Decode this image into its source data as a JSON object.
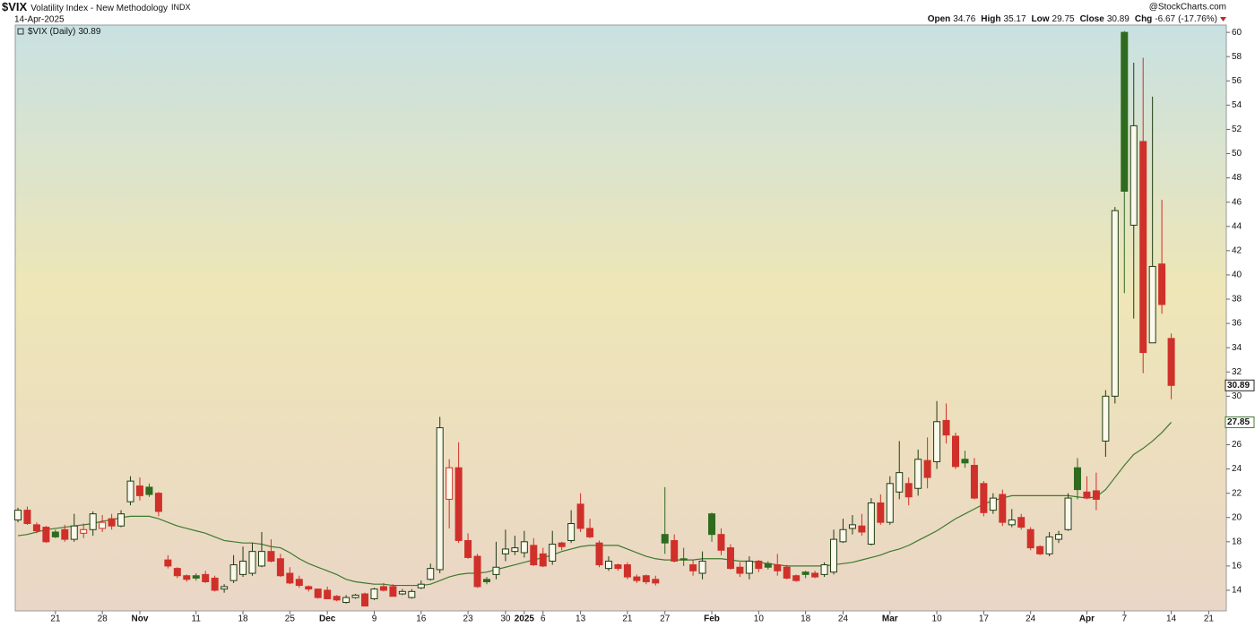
{
  "chart_data": {
    "type": "candlestick",
    "symbol": "$VIX",
    "title": "Volatility Index - New Methodology",
    "exchange": "INDX",
    "date": "14-Apr-2025",
    "watermark": "@StockCharts.com",
    "series_label": "$VIX (Daily)",
    "header": {
      "open_label": "Open",
      "high_label": "High",
      "low_label": "Low",
      "close_label": "Close",
      "change_label": "Chg",
      "change": "-6.67",
      "change_pct": "(-17.76%)"
    },
    "categories": [
      null,
      null,
      null,
      null,
      "21",
      null,
      null,
      null,
      null,
      "28",
      null,
      null,
      null,
      "Nov",
      null,
      null,
      null,
      null,
      null,
      "11",
      null,
      null,
      null,
      null,
      "18",
      null,
      null,
      null,
      null,
      "25",
      null,
      null,
      null,
      "Dec",
      null,
      null,
      null,
      null,
      "9",
      null,
      null,
      null,
      null,
      "16",
      null,
      null,
      null,
      null,
      "23",
      null,
      null,
      null,
      "30",
      null,
      "2025",
      null,
      "6",
      null,
      null,
      null,
      "13",
      null,
      null,
      null,
      null,
      "21",
      null,
      null,
      null,
      "27",
      null,
      null,
      null,
      null,
      "Feb",
      null,
      null,
      null,
      null,
      "10",
      null,
      null,
      null,
      null,
      "18",
      null,
      null,
      null,
      "24",
      null,
      null,
      null,
      null,
      "Mar",
      null,
      null,
      null,
      null,
      "10",
      null,
      null,
      null,
      null,
      "17",
      null,
      null,
      null,
      null,
      "24",
      null,
      null,
      null,
      null,
      null,
      "Apr",
      null,
      null,
      null,
      "7",
      null,
      null,
      null,
      null,
      "14",
      null,
      null,
      null,
      "21"
    ],
    "open": [
      19.8,
      20.6,
      19.4,
      19.2,
      18.8,
      19.0,
      18.2,
      18.7,
      19.0,
      19.1,
      19.9,
      19.3,
      21.3,
      22.6,
      22.5,
      22.0,
      16.5,
      15.8,
      15.2,
      15.2,
      15.3,
      15.0,
      14.1,
      14.8,
      15.3,
      15.4,
      16.0,
      17.2,
      16.6,
      15.4,
      14.9,
      14.3,
      14.1,
      14.0,
      13.5,
      13.0,
      13.4,
      13.7,
      13.3,
      14.3,
      14.3,
      13.7,
      13.4,
      14.2,
      14.9,
      15.7,
      21.5,
      24.1,
      18.1,
      16.8,
      14.9,
      15.3,
      17.0,
      17.2,
      17.1,
      17.7,
      17.0,
      16.4,
      17.9,
      18.1,
      21.1,
      19.1,
      17.9,
      15.8,
      16.1,
      16.1,
      15.1,
      15.2,
      14.9,
      18.6,
      18.1,
      16.6,
      16.1,
      15.4,
      20.3,
      18.6,
      17.5,
      15.9,
      15.4,
      16.4,
      16.2,
      16.1,
      15.9,
      15.2,
      15.5,
      15.4,
      15.3,
      15.5,
      18.0,
      19.1,
      19.3,
      17.8,
      21.2,
      19.6,
      22.1,
      22.8,
      22.4,
      24.7,
      24.6,
      28.0,
      26.7,
      24.8,
      24.3,
      22.8,
      20.6,
      21.9,
      19.4,
      20.0,
      19.0,
      17.6,
      17.0,
      18.2,
      19.0,
      24.1,
      22.1,
      22.2,
      26.3,
      30.0,
      60.0,
      44.1,
      51.0,
      34.4,
      40.9,
      34.76,
      null,
      null,
      null,
      null
    ],
    "high": [
      20.8,
      20.9,
      19.6,
      19.3,
      19.0,
      19.4,
      20.3,
      19.5,
      20.5,
      20.2,
      20.3,
      20.6,
      23.4,
      23.3,
      22.8,
      22.1,
      16.9,
      15.9,
      15.3,
      15.4,
      15.6,
      15.2,
      14.5,
      16.9,
      17.6,
      17.9,
      18.8,
      18.2,
      17.0,
      15.9,
      15.2,
      14.4,
      14.1,
      14.3,
      13.6,
      13.6,
      13.7,
      13.8,
      14.2,
      14.6,
      14.5,
      14.1,
      14.1,
      14.8,
      16.2,
      28.3,
      24.8,
      26.2,
      18.7,
      17.0,
      15.1,
      18.0,
      19.0,
      18.5,
      18.9,
      18.3,
      17.5,
      18.9,
      18.0,
      20.6,
      22.0,
      19.9,
      18.1,
      16.8,
      16.2,
      16.3,
      15.3,
      15.3,
      15.2,
      22.5,
      18.6,
      17.5,
      16.5,
      17.2,
      20.4,
      19.1,
      17.8,
      16.3,
      16.8,
      16.5,
      16.4,
      17.0,
      16.1,
      15.3,
      15.6,
      15.6,
      16.3,
      19.0,
      19.9,
      20.2,
      20.3,
      21.6,
      21.9,
      23.4,
      26.3,
      23.3,
      25.6,
      26.6,
      29.6,
      29.4,
      27.0,
      25.5,
      24.9,
      23.0,
      22.0,
      22.3,
      20.7,
      20.3,
      19.2,
      17.7,
      18.8,
      18.9,
      22.0,
      24.9,
      23.4,
      23.7,
      30.5,
      45.6,
      60.1,
      57.5,
      57.9,
      54.7,
      46.2,
      35.17,
      null,
      null,
      null,
      null
    ],
    "low": [
      19.6,
      19.4,
      18.7,
      17.9,
      18.3,
      18.0,
      18.0,
      18.3,
      18.5,
      18.8,
      19.0,
      19.2,
      21.0,
      21.4,
      21.7,
      20.1,
      15.8,
      15.0,
      14.7,
      14.8,
      14.6,
      13.9,
      13.8,
      14.6,
      15.1,
      15.2,
      15.9,
      16.3,
      15.1,
      14.5,
      14.2,
      13.9,
      13.3,
      13.3,
      13.1,
      12.9,
      13.3,
      12.7,
      13.2,
      13.9,
      13.5,
      13.6,
      13.3,
      14.1,
      14.8,
      15.4,
      19.1,
      17.9,
      16.6,
      14.2,
      14.5,
      14.9,
      16.4,
      16.9,
      16.7,
      16.0,
      15.9,
      16.1,
      17.3,
      17.9,
      18.8,
      18.3,
      15.9,
      15.6,
      15.6,
      14.9,
      14.6,
      14.5,
      14.4,
      17.0,
      16.3,
      16.0,
      15.2,
      14.9,
      18.0,
      16.9,
      15.7,
      15.1,
      14.9,
      15.5,
      15.7,
      15.2,
      14.9,
      14.7,
      15.0,
      15.0,
      15.1,
      15.3,
      17.9,
      18.6,
      18.5,
      17.7,
      19.4,
      19.4,
      21.5,
      21.0,
      21.8,
      22.4,
      24.0,
      26.1,
      24.0,
      24.1,
      21.5,
      20.1,
      20.3,
      19.3,
      19.2,
      19.0,
      17.3,
      16.9,
      16.8,
      17.9,
      18.9,
      21.5,
      21.5,
      20.6,
      25.0,
      29.4,
      38.5,
      36.4,
      31.9,
      34.4,
      36.8,
      29.75,
      null,
      null,
      null,
      null
    ],
    "close": [
      20.6,
      19.5,
      18.9,
      18.0,
      18.4,
      18.2,
      19.3,
      19.0,
      20.3,
      19.6,
      19.3,
      20.3,
      23.0,
      21.8,
      21.9,
      20.5,
      16.0,
      15.2,
      14.9,
      15.0,
      14.7,
      14.0,
      14.3,
      16.1,
      16.4,
      17.2,
      17.2,
      16.4,
      15.2,
      14.6,
      14.4,
      14.1,
      13.4,
      13.3,
      13.2,
      13.4,
      13.6,
      12.7,
      14.1,
      14.0,
      13.5,
      13.9,
      13.9,
      14.5,
      15.8,
      27.4,
      24.1,
      18.1,
      16.7,
      14.3,
      14.7,
      15.9,
      17.4,
      17.5,
      18.0,
      16.1,
      16.0,
      17.8,
      17.6,
      19.5,
      19.1,
      18.4,
      16.1,
      16.4,
      15.8,
      15.1,
      14.8,
      14.7,
      14.6,
      17.9,
      16.4,
      16.5,
      15.6,
      16.4,
      18.6,
      17.3,
      15.8,
      15.4,
      16.4,
      15.8,
      15.9,
      15.6,
      15.0,
      14.8,
      15.3,
      15.1,
      16.1,
      18.2,
      19.0,
      19.4,
      18.8,
      21.2,
      19.6,
      22.8,
      23.7,
      21.7,
      24.8,
      23.3,
      27.9,
      26.8,
      24.2,
      24.5,
      21.6,
      20.4,
      21.6,
      19.6,
      19.8,
      19.2,
      17.5,
      17.0,
      18.4,
      18.6,
      21.6,
      22.3,
      21.6,
      21.5,
      30.0,
      45.3,
      46.9,
      52.3,
      33.6,
      40.7,
      37.56,
      30.89,
      null,
      null,
      null,
      null
    ],
    "ma": {
      "color": "#3d7a2e",
      "values": [
        18.5,
        18.6,
        18.8,
        19.0,
        19.1,
        19.2,
        19.3,
        19.4,
        19.5,
        19.7,
        19.8,
        20.0,
        20.1,
        20.1,
        20.1,
        19.9,
        19.6,
        19.3,
        19.1,
        18.9,
        18.7,
        18.4,
        18.1,
        18.0,
        17.9,
        17.9,
        17.8,
        17.6,
        17.5,
        17.1,
        16.6,
        16.2,
        15.9,
        15.6,
        15.3,
        14.9,
        14.7,
        14.6,
        14.5,
        14.5,
        14.4,
        14.4,
        14.4,
        14.4,
        14.5,
        14.8,
        15.1,
        15.3,
        15.4,
        15.4,
        15.5,
        15.7,
        15.9,
        16.1,
        16.3,
        16.5,
        16.7,
        16.9,
        17.2,
        17.4,
        17.6,
        17.7,
        17.7,
        17.7,
        17.7,
        17.4,
        17.1,
        16.8,
        16.6,
        16.5,
        16.5,
        16.5,
        16.5,
        16.6,
        16.6,
        16.6,
        16.5,
        16.4,
        16.4,
        16.3,
        16.2,
        16.1,
        16.0,
        16.0,
        16.0,
        16.0,
        16.0,
        16.1,
        16.2,
        16.3,
        16.5,
        16.7,
        16.9,
        17.2,
        17.4,
        17.7,
        18.1,
        18.5,
        18.9,
        19.4,
        19.9,
        20.3,
        20.7,
        21.1,
        21.4,
        21.6,
        21.8,
        21.8,
        21.8,
        21.8,
        21.8,
        21.8,
        21.8,
        21.7,
        21.6,
        21.7,
        22.3,
        23.3,
        24.3,
        25.2,
        25.7,
        26.3,
        27.0,
        27.85,
        null,
        null,
        null,
        null
      ]
    },
    "up_color": "#1f3d12",
    "down_color": "#d0302a",
    "up_fill_color": "#2e6b1e",
    "ylim": [
      12.3,
      60.6
    ],
    "yticks": [
      14,
      16,
      18,
      20,
      22,
      24,
      26,
      28,
      30,
      32,
      34,
      36,
      38,
      40,
      42,
      44,
      46,
      48,
      50,
      52,
      54,
      56,
      58,
      60
    ]
  }
}
